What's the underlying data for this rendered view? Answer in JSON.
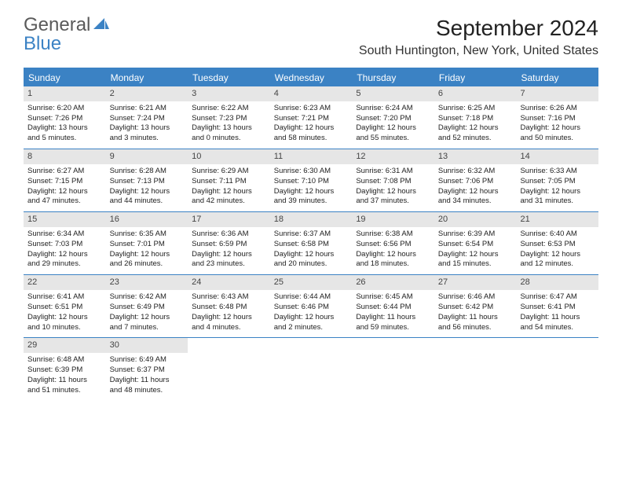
{
  "logo": {
    "text_main": "General",
    "text_sub": "Blue"
  },
  "title": "September 2024",
  "location": "South Huntington, New York, United States",
  "weekdays": [
    "Sunday",
    "Monday",
    "Tuesday",
    "Wednesday",
    "Thursday",
    "Friday",
    "Saturday"
  ],
  "colors": {
    "header_bg": "#3b82c4",
    "daynum_bg": "#e6e6e6",
    "text": "#222222",
    "logo_gray": "#5a5a5a"
  },
  "weeks": [
    [
      {
        "n": "1",
        "sr": "Sunrise: 6:20 AM",
        "ss": "Sunset: 7:26 PM",
        "d1": "Daylight: 13 hours",
        "d2": "and 5 minutes."
      },
      {
        "n": "2",
        "sr": "Sunrise: 6:21 AM",
        "ss": "Sunset: 7:24 PM",
        "d1": "Daylight: 13 hours",
        "d2": "and 3 minutes."
      },
      {
        "n": "3",
        "sr": "Sunrise: 6:22 AM",
        "ss": "Sunset: 7:23 PM",
        "d1": "Daylight: 13 hours",
        "d2": "and 0 minutes."
      },
      {
        "n": "4",
        "sr": "Sunrise: 6:23 AM",
        "ss": "Sunset: 7:21 PM",
        "d1": "Daylight: 12 hours",
        "d2": "and 58 minutes."
      },
      {
        "n": "5",
        "sr": "Sunrise: 6:24 AM",
        "ss": "Sunset: 7:20 PM",
        "d1": "Daylight: 12 hours",
        "d2": "and 55 minutes."
      },
      {
        "n": "6",
        "sr": "Sunrise: 6:25 AM",
        "ss": "Sunset: 7:18 PM",
        "d1": "Daylight: 12 hours",
        "d2": "and 52 minutes."
      },
      {
        "n": "7",
        "sr": "Sunrise: 6:26 AM",
        "ss": "Sunset: 7:16 PM",
        "d1": "Daylight: 12 hours",
        "d2": "and 50 minutes."
      }
    ],
    [
      {
        "n": "8",
        "sr": "Sunrise: 6:27 AM",
        "ss": "Sunset: 7:15 PM",
        "d1": "Daylight: 12 hours",
        "d2": "and 47 minutes."
      },
      {
        "n": "9",
        "sr": "Sunrise: 6:28 AM",
        "ss": "Sunset: 7:13 PM",
        "d1": "Daylight: 12 hours",
        "d2": "and 44 minutes."
      },
      {
        "n": "10",
        "sr": "Sunrise: 6:29 AM",
        "ss": "Sunset: 7:11 PM",
        "d1": "Daylight: 12 hours",
        "d2": "and 42 minutes."
      },
      {
        "n": "11",
        "sr": "Sunrise: 6:30 AM",
        "ss": "Sunset: 7:10 PM",
        "d1": "Daylight: 12 hours",
        "d2": "and 39 minutes."
      },
      {
        "n": "12",
        "sr": "Sunrise: 6:31 AM",
        "ss": "Sunset: 7:08 PM",
        "d1": "Daylight: 12 hours",
        "d2": "and 37 minutes."
      },
      {
        "n": "13",
        "sr": "Sunrise: 6:32 AM",
        "ss": "Sunset: 7:06 PM",
        "d1": "Daylight: 12 hours",
        "d2": "and 34 minutes."
      },
      {
        "n": "14",
        "sr": "Sunrise: 6:33 AM",
        "ss": "Sunset: 7:05 PM",
        "d1": "Daylight: 12 hours",
        "d2": "and 31 minutes."
      }
    ],
    [
      {
        "n": "15",
        "sr": "Sunrise: 6:34 AM",
        "ss": "Sunset: 7:03 PM",
        "d1": "Daylight: 12 hours",
        "d2": "and 29 minutes."
      },
      {
        "n": "16",
        "sr": "Sunrise: 6:35 AM",
        "ss": "Sunset: 7:01 PM",
        "d1": "Daylight: 12 hours",
        "d2": "and 26 minutes."
      },
      {
        "n": "17",
        "sr": "Sunrise: 6:36 AM",
        "ss": "Sunset: 6:59 PM",
        "d1": "Daylight: 12 hours",
        "d2": "and 23 minutes."
      },
      {
        "n": "18",
        "sr": "Sunrise: 6:37 AM",
        "ss": "Sunset: 6:58 PM",
        "d1": "Daylight: 12 hours",
        "d2": "and 20 minutes."
      },
      {
        "n": "19",
        "sr": "Sunrise: 6:38 AM",
        "ss": "Sunset: 6:56 PM",
        "d1": "Daylight: 12 hours",
        "d2": "and 18 minutes."
      },
      {
        "n": "20",
        "sr": "Sunrise: 6:39 AM",
        "ss": "Sunset: 6:54 PM",
        "d1": "Daylight: 12 hours",
        "d2": "and 15 minutes."
      },
      {
        "n": "21",
        "sr": "Sunrise: 6:40 AM",
        "ss": "Sunset: 6:53 PM",
        "d1": "Daylight: 12 hours",
        "d2": "and 12 minutes."
      }
    ],
    [
      {
        "n": "22",
        "sr": "Sunrise: 6:41 AM",
        "ss": "Sunset: 6:51 PM",
        "d1": "Daylight: 12 hours",
        "d2": "and 10 minutes."
      },
      {
        "n": "23",
        "sr": "Sunrise: 6:42 AM",
        "ss": "Sunset: 6:49 PM",
        "d1": "Daylight: 12 hours",
        "d2": "and 7 minutes."
      },
      {
        "n": "24",
        "sr": "Sunrise: 6:43 AM",
        "ss": "Sunset: 6:48 PM",
        "d1": "Daylight: 12 hours",
        "d2": "and 4 minutes."
      },
      {
        "n": "25",
        "sr": "Sunrise: 6:44 AM",
        "ss": "Sunset: 6:46 PM",
        "d1": "Daylight: 12 hours",
        "d2": "and 2 minutes."
      },
      {
        "n": "26",
        "sr": "Sunrise: 6:45 AM",
        "ss": "Sunset: 6:44 PM",
        "d1": "Daylight: 11 hours",
        "d2": "and 59 minutes."
      },
      {
        "n": "27",
        "sr": "Sunrise: 6:46 AM",
        "ss": "Sunset: 6:42 PM",
        "d1": "Daylight: 11 hours",
        "d2": "and 56 minutes."
      },
      {
        "n": "28",
        "sr": "Sunrise: 6:47 AM",
        "ss": "Sunset: 6:41 PM",
        "d1": "Daylight: 11 hours",
        "d2": "and 54 minutes."
      }
    ],
    [
      {
        "n": "29",
        "sr": "Sunrise: 6:48 AM",
        "ss": "Sunset: 6:39 PM",
        "d1": "Daylight: 11 hours",
        "d2": "and 51 minutes."
      },
      {
        "n": "30",
        "sr": "Sunrise: 6:49 AM",
        "ss": "Sunset: 6:37 PM",
        "d1": "Daylight: 11 hours",
        "d2": "and 48 minutes."
      },
      null,
      null,
      null,
      null,
      null
    ]
  ]
}
